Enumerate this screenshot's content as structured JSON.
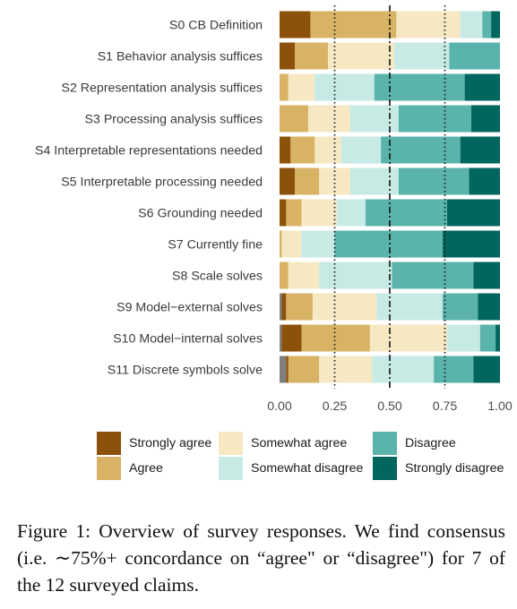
{
  "chart_data": {
    "type": "bar",
    "orientation": "horizontal",
    "stacked": true,
    "categories": [
      "S0 CB Definition",
      "S1 Behavior analysis suffices",
      "S2 Representation analysis suffices",
      "S3 Processing analysis suffices",
      "S4 Interpretable representations needed",
      "S5 Interpretable processing needed",
      "S6 Grounding needed",
      "S7 Currently fine",
      "S8 Scale solves",
      "S9 Model−external solves",
      "S10 Model−internal solves",
      "S11 Discrete symbols solve"
    ],
    "series": [
      {
        "name": "",
        "color": "#7f7f7f",
        "values": [
          0,
          0,
          0,
          0,
          0,
          0,
          0,
          0,
          0,
          0.01,
          0.01,
          0.03
        ]
      },
      {
        "name": "Strongly agree",
        "color": "#8c510a",
        "values": [
          0.14,
          0.07,
          0,
          0,
          0.05,
          0.07,
          0.03,
          0,
          0,
          0.02,
          0.09,
          0.01
        ]
      },
      {
        "name": "Agree",
        "color": "#d8b365",
        "values": [
          0.39,
          0.15,
          0.04,
          0.13,
          0.11,
          0.11,
          0.07,
          0.01,
          0.04,
          0.12,
          0.31,
          0.14
        ]
      },
      {
        "name": "Somewhat agree",
        "color": "#f6e8c3",
        "values": [
          0.29,
          0.3,
          0.12,
          0.19,
          0.12,
          0.14,
          0.16,
          0.09,
          0.14,
          0.29,
          0.35,
          0.24
        ]
      },
      {
        "name": "Somewhat disagree",
        "color": "#c7eae5",
        "values": [
          0.1,
          0.25,
          0.27,
          0.22,
          0.18,
          0.22,
          0.13,
          0.15,
          0.33,
          0.3,
          0.15,
          0.28
        ]
      },
      {
        "name": "Disagree",
        "color": "#5ab4ac",
        "values": [
          0.04,
          0.23,
          0.41,
          0.33,
          0.36,
          0.32,
          0.37,
          0.49,
          0.37,
          0.16,
          0.07,
          0.18
        ]
      },
      {
        "name": "Strongly disagree",
        "color": "#01665e",
        "values": [
          0.04,
          0,
          0.16,
          0.13,
          0.18,
          0.14,
          0.24,
          0.26,
          0.12,
          0.1,
          0.02,
          0.12
        ]
      }
    ],
    "xticks": [
      "0.00",
      "0.25",
      "0.50",
      "0.75",
      "1.00"
    ],
    "xlim": [
      0,
      1
    ],
    "reference_lines": [
      {
        "x": 0.25,
        "style": "dotted"
      },
      {
        "x": 0.5,
        "style": "dashdot"
      },
      {
        "x": 0.75,
        "style": "dotted"
      }
    ],
    "legend": {
      "placement": "bottom",
      "entries": [
        "Strongly agree",
        "Agree",
        "Somewhat agree",
        "Somewhat disagree",
        "Disagree",
        "Strongly disagree"
      ]
    },
    "title": "",
    "xlabel": "",
    "ylabel": ""
  },
  "caption": "Figure 1: Overview of survey responses. We find consensus (i.e. ∼75%+ concordance on “agree\" or “disagree\") for 7 of the 12 surveyed claims."
}
